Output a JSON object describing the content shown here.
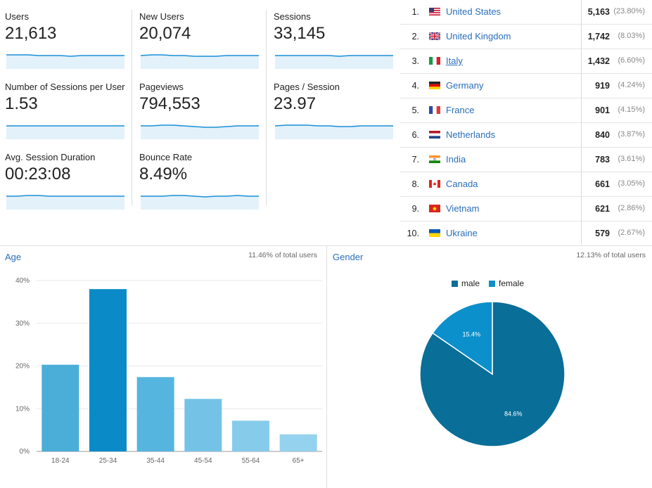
{
  "metrics": [
    {
      "label": "Users",
      "value": "21,613"
    },
    {
      "label": "New Users",
      "value": "20,074"
    },
    {
      "label": "Sessions",
      "value": "33,145"
    },
    {
      "label": "Number of Sessions per User",
      "value": "1.53"
    },
    {
      "label": "Pageviews",
      "value": "794,553"
    },
    {
      "label": "Pages / Session",
      "value": "23.97"
    },
    {
      "label": "Avg. Session Duration",
      "value": "00:23:08"
    },
    {
      "label": "Bounce Rate",
      "value": "8.49%"
    }
  ],
  "countries": [
    {
      "rank": "1.",
      "name": "United States",
      "count": "5,163",
      "pct": "(23.80%)",
      "flag": "us-flag-icon"
    },
    {
      "rank": "2.",
      "name": "United Kingdom",
      "count": "1,742",
      "pct": "(8.03%)",
      "flag": "uk-flag-icon"
    },
    {
      "rank": "3.",
      "name": "Italy",
      "count": "1,432",
      "pct": "(6.60%)",
      "flag": "italy-flag-icon"
    },
    {
      "rank": "4.",
      "name": "Germany",
      "count": "919",
      "pct": "(4.24%)",
      "flag": "germany-flag-icon"
    },
    {
      "rank": "5.",
      "name": "France",
      "count": "901",
      "pct": "(4.15%)",
      "flag": "france-flag-icon"
    },
    {
      "rank": "6.",
      "name": "Netherlands",
      "count": "840",
      "pct": "(3.87%)",
      "flag": "netherlands-flag-icon"
    },
    {
      "rank": "7.",
      "name": "India",
      "count": "783",
      "pct": "(3.61%)",
      "flag": "india-flag-icon"
    },
    {
      "rank": "8.",
      "name": "Canada",
      "count": "661",
      "pct": "(3.05%)",
      "flag": "canada-flag-icon"
    },
    {
      "rank": "9.",
      "name": "Vietnam",
      "count": "621",
      "pct": "(2.86%)",
      "flag": "vietnam-flag-icon"
    },
    {
      "rank": "10.",
      "name": "Ukraine",
      "count": "579",
      "pct": "(2.67%)",
      "flag": "ukraine-flag-icon"
    }
  ],
  "age_panel": {
    "title": "Age",
    "note": "11.46% of total users"
  },
  "gender_panel": {
    "title": "Gender",
    "note": "12.13% of total users"
  },
  "colors": {
    "accent": "#2a6ebb",
    "spark_line": "#1a8fd8",
    "spark_fill": "#e3f1fa",
    "male": "#096e98",
    "female": "#0b90cc"
  },
  "chart_data": [
    {
      "type": "bar",
      "title": "Age",
      "categories": [
        "18-24",
        "25-34",
        "35-44",
        "45-54",
        "55-64",
        "65+"
      ],
      "values": [
        20.3,
        38.0,
        17.4,
        12.3,
        7.2,
        4.0
      ],
      "bar_colors": [
        "#4aaed9",
        "#0b8ac8",
        "#55b5df",
        "#74c3e6",
        "#86cbea",
        "#95d2ed"
      ],
      "ylim": [
        0,
        40
      ],
      "yticks": [
        0,
        10,
        20,
        30,
        40
      ],
      "ytick_labels": [
        "0%",
        "10%",
        "20%",
        "30%",
        "40%"
      ],
      "grid": true
    },
    {
      "type": "pie",
      "title": "Gender",
      "labels": [
        "male",
        "female"
      ],
      "values": [
        84.6,
        15.4
      ],
      "value_labels": [
        "84.6%",
        "15.4%"
      ],
      "colors": [
        "#096e98",
        "#0b90cc"
      ],
      "legend": "top"
    }
  ]
}
